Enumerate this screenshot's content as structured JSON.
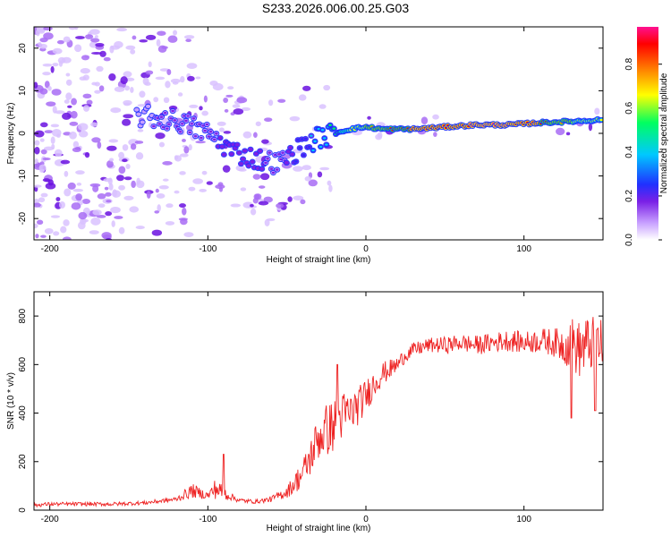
{
  "title": "S233.2026.006.00.25.G03",
  "chart_data": [
    {
      "type": "heatmap",
      "name": "spectrogram",
      "xlabel": "Height of straight line (km)",
      "ylabel": "Frequency (Hz)",
      "xlim": [
        -210,
        150
      ],
      "ylim": [
        -25,
        25
      ],
      "xticks": [
        -200,
        -100,
        0,
        100
      ],
      "yticks": [
        -20,
        -10,
        0,
        10,
        20
      ],
      "colorbar": {
        "label": "Normalized spectral amplitude",
        "range": [
          0,
          0.97
        ],
        "ticks": [
          0.0,
          0.2,
          0.4,
          0.6,
          0.8
        ],
        "colors": [
          "#ffffff",
          "#c8a0ff",
          "#7a20e6",
          "#2030ff",
          "#00c8ff",
          "#00ff60",
          "#ffff00",
          "#ff8000",
          "#ff0000",
          "#ff1090"
        ]
      },
      "ridge": {
        "x": [
          -140,
          -120,
          -100,
          -85,
          -70,
          -55,
          -40,
          -30,
          -20,
          -10,
          0,
          10,
          30,
          50,
          70,
          90,
          110,
          130,
          150
        ],
        "y": [
          4,
          3,
          0,
          -4,
          -6,
          -7,
          -3,
          -1,
          0,
          1,
          1.5,
          1,
          1,
          1.5,
          2,
          2,
          2.5,
          2.8,
          3.2
        ],
        "amplitude": [
          0.15,
          0.2,
          0.22,
          0.25,
          0.25,
          0.2,
          0.3,
          0.45,
          0.5,
          0.6,
          0.7,
          0.8,
          0.85,
          0.9,
          0.92,
          0.92,
          0.85,
          0.7,
          0.6
        ]
      }
    },
    {
      "type": "line",
      "name": "snr",
      "xlabel": "Height of straight line (km)",
      "ylabel": "SNR (10 * v/v)",
      "xlim": [
        -210,
        150
      ],
      "ylim": [
        0,
        900
      ],
      "xticks": [
        -200,
        -100,
        0,
        100
      ],
      "yticks": [
        0,
        200,
        400,
        600,
        800
      ],
      "color": "#ee2222",
      "series": [
        {
          "name": "SNR",
          "x": [
            -210,
            -200,
            -180,
            -160,
            -140,
            -120,
            -110,
            -100,
            -95,
            -90,
            -85,
            -80,
            -70,
            -60,
            -50,
            -40,
            -35,
            -30,
            -25,
            -20,
            -15,
            -10,
            -5,
            0,
            5,
            10,
            15,
            20,
            25,
            30,
            40,
            50,
            60,
            70,
            80,
            90,
            100,
            110,
            120,
            125,
            130,
            135,
            140,
            145,
            150
          ],
          "y": [
            20,
            25,
            25,
            25,
            30,
            45,
            80,
            60,
            90,
            70,
            55,
            40,
            35,
            45,
            75,
            150,
            220,
            300,
            330,
            350,
            390,
            400,
            430,
            470,
            520,
            560,
            580,
            600,
            640,
            660,
            680,
            680,
            690,
            680,
            690,
            700,
            690,
            700,
            690,
            680,
            690,
            660,
            680,
            690,
            680
          ],
          "noise": [
            8,
            8,
            8,
            8,
            8,
            10,
            30,
            15,
            45,
            30,
            15,
            10,
            8,
            12,
            25,
            60,
            80,
            100,
            110,
            110,
            100,
            90,
            80,
            70,
            60,
            50,
            40,
            35,
            30,
            30,
            30,
            35,
            35,
            40,
            40,
            45,
            45,
            50,
            60,
            80,
            110,
            120,
            120,
            110,
            100
          ],
          "peaks": [
            {
              "x": -90,
              "y": 230
            },
            {
              "x": -18,
              "y": 600
            },
            {
              "x": 130,
              "y": 380
            },
            {
              "x": 145,
              "y": 410
            }
          ]
        }
      ]
    }
  ]
}
